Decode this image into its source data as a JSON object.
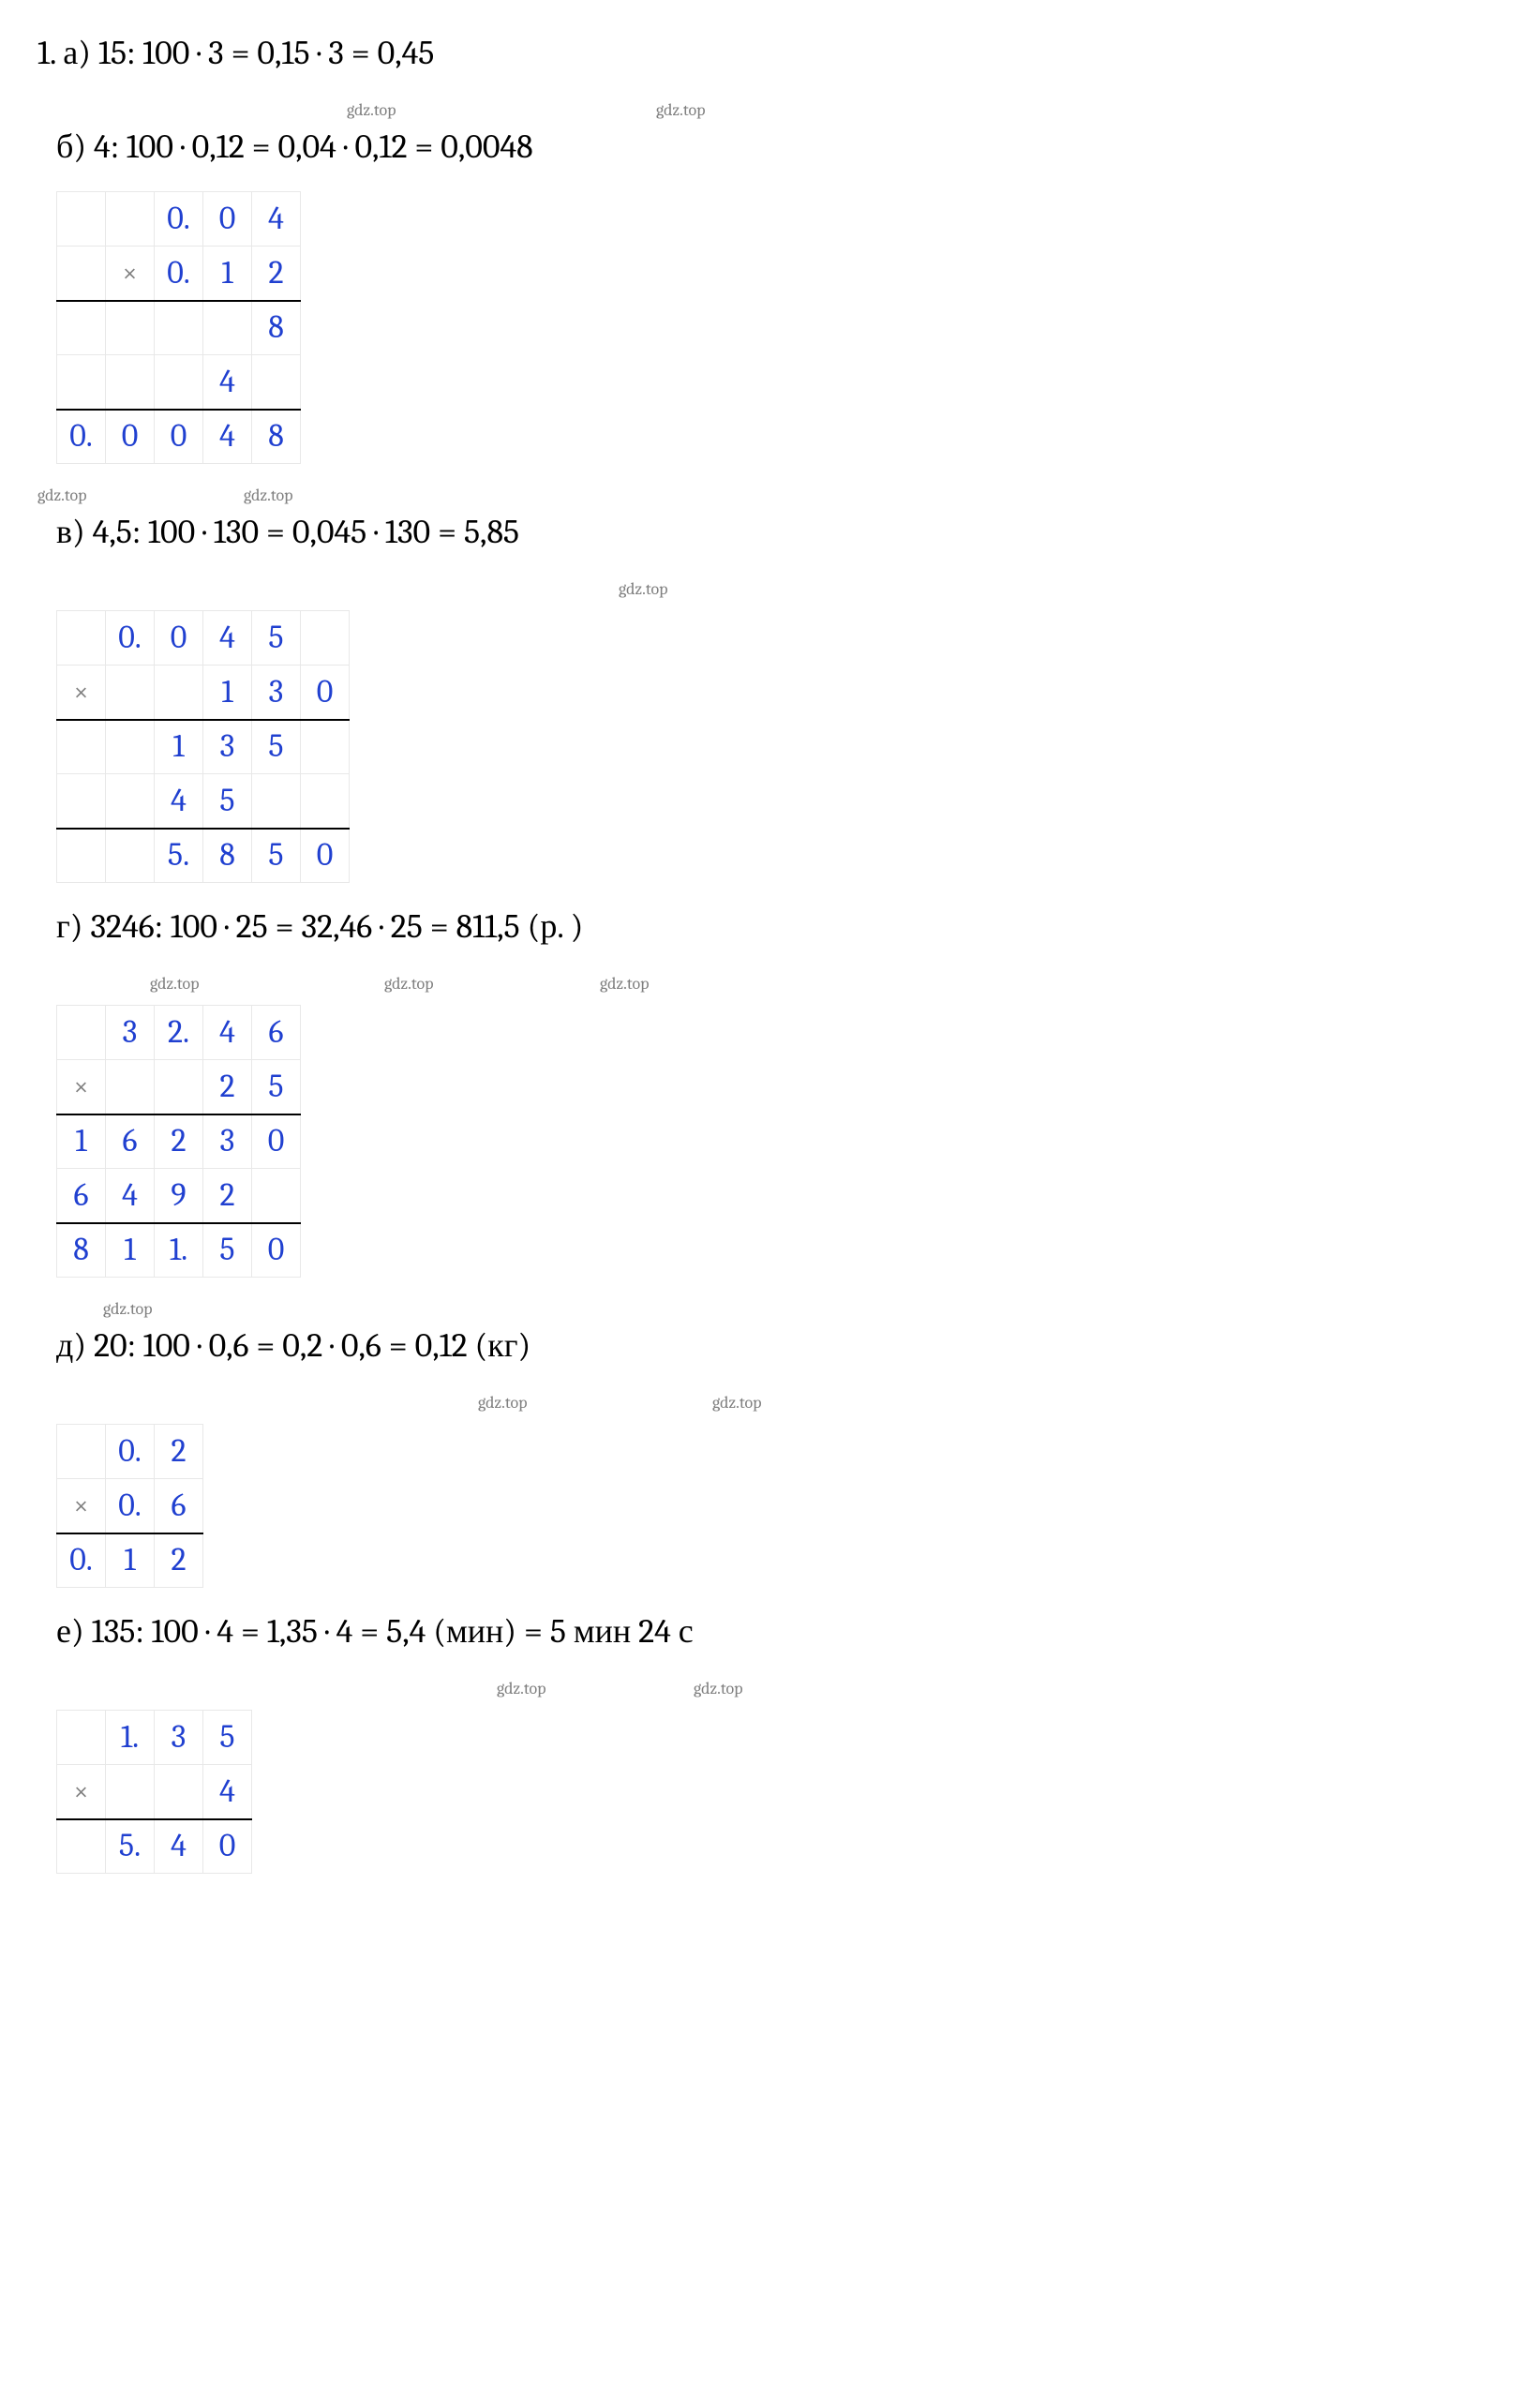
{
  "watermark_text": "gdz.top",
  "watermark_color": "#808080",
  "digit_color": "#2040d0",
  "border_color": "#e8e8e8",
  "line_a": "1. а) 15: 100 · 3 = 0,15 · 3 = 0,45",
  "line_b": "б) 4: 100 · 0,12 = 0,04 · 0,12 = 0,0048",
  "line_v": "в) 4,5: 100 · 130 = 0,045 · 130 = 5,85",
  "line_g": "г) 3246: 100 · 25 = 32,46 · 25 = 811,5 (р. )",
  "line_d": "д) 20: 100 · 0,6 = 0,2 · 0,6 = 0,12 (кг)",
  "line_e": "е) 135: 100 · 4 = 1,35 · 4 = 5,4 (мин) = 5 мин 24 с",
  "table_b": {
    "type": "table",
    "rows": [
      [
        "",
        "",
        "0.",
        "0",
        "4"
      ],
      [
        "",
        "×",
        "0.",
        "1",
        "2"
      ],
      [
        "",
        "",
        "",
        "",
        "8"
      ],
      [
        "",
        "",
        "",
        "4",
        ""
      ],
      [
        "0.",
        "0",
        "0",
        "4",
        "8"
      ]
    ],
    "border_after_row": [
      1,
      3
    ]
  },
  "table_v": {
    "type": "table",
    "rows": [
      [
        "",
        "0.",
        "0",
        "4",
        "5",
        ""
      ],
      [
        "×",
        "",
        "",
        "1",
        "3",
        "0"
      ],
      [
        "",
        "",
        "1",
        "3",
        "5",
        ""
      ],
      [
        "",
        "",
        "4",
        "5",
        "",
        ""
      ],
      [
        "",
        "",
        "5.",
        "8",
        "5",
        "0"
      ]
    ],
    "border_after_row": [
      1,
      3
    ]
  },
  "table_g": {
    "type": "table",
    "rows": [
      [
        "",
        "3",
        "2.",
        "4",
        "6"
      ],
      [
        "×",
        "",
        "",
        "2",
        "5"
      ],
      [
        "1",
        "6",
        "2",
        "3",
        "0"
      ],
      [
        "6",
        "4",
        "9",
        "2",
        ""
      ],
      [
        "8",
        "1",
        "1.",
        "5",
        "0"
      ]
    ],
    "border_after_row": [
      1,
      3
    ]
  },
  "table_d": {
    "type": "table",
    "rows": [
      [
        "",
        "0.",
        "2"
      ],
      [
        "×",
        "0.",
        "6"
      ],
      [
        "0.",
        "1",
        "2"
      ]
    ],
    "border_after_row": [
      1
    ]
  },
  "table_e": {
    "type": "table",
    "rows": [
      [
        "",
        "1.",
        "3",
        "5"
      ],
      [
        "×",
        "",
        "",
        "4"
      ],
      [
        "",
        "5.",
        "4",
        "0"
      ]
    ],
    "border_after_row": [
      1
    ]
  }
}
